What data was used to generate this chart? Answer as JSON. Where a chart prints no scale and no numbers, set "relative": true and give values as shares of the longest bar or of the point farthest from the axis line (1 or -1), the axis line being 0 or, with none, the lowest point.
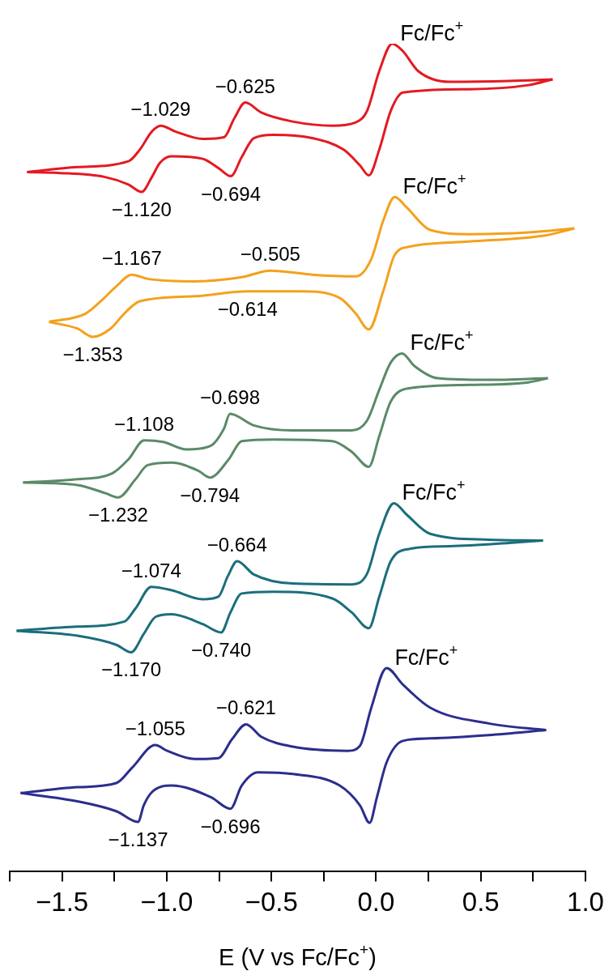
{
  "chart_data": {
    "type": "line",
    "relative": true,
    "xlabel": "E (V vs Fc/Fc$^{+}$)",
    "xlim": [
      -1.75,
      1.0
    ],
    "xticks": [
      {
        "value": -1.75,
        "label": null
      },
      {
        "value": -1.5,
        "label": "−1.5"
      },
      {
        "value": -1.25,
        "label": null
      },
      {
        "value": -1.0,
        "label": "−1.0"
      },
      {
        "value": -0.75,
        "label": null
      },
      {
        "value": -0.5,
        "label": "−0.5"
      },
      {
        "value": -0.25,
        "label": null
      },
      {
        "value": 0.0,
        "label": "0.0"
      },
      {
        "value": 0.25,
        "label": null
      },
      {
        "value": 0.5,
        "label": "0.5"
      },
      {
        "value": 0.75,
        "label": null
      },
      {
        "value": 1.0,
        "label": "1.0"
      }
    ],
    "tick_labels": "x",
    "legend": false,
    "series": [
      {
        "name": "Fc/Fc$^{+}$",
        "color": "#e31a22",
        "x": [
          -1.667,
          -1.427,
          -1.183,
          -1.129,
          -1.071,
          -1.029,
          -0.959,
          -0.828,
          -0.727,
          -0.677,
          -0.625,
          -0.549,
          -0.398,
          -0.209,
          -0.097,
          -0.043,
          0.015,
          0.077,
          0.128,
          0.201,
          0.352,
          0.634,
          0.843
        ],
        "values": [
          0.845,
          0.851,
          0.858,
          0.872,
          0.894,
          0.901,
          0.894,
          0.885,
          0.887,
          0.91,
          0.929,
          0.917,
          0.906,
          0.901,
          0.905,
          0.919,
          0.967,
          1.0,
          0.991,
          0.967,
          0.954,
          0.955,
          0.957
        ]
      },
      {
        "color": "#e31a22",
        "x": [
          -1.667,
          -1.52,
          -1.295,
          -1.183,
          -1.12,
          -1.071,
          -1.033,
          -0.978,
          -0.828,
          -0.754,
          -0.694,
          -0.642,
          -0.584,
          -0.491,
          -0.305,
          -0.155,
          -0.077,
          -0.035,
          0.015,
          0.07,
          0.128,
          0.445,
          0.727,
          0.843
        ],
        "values": [
          0.845,
          0.844,
          0.839,
          0.83,
          0.821,
          0.839,
          0.856,
          0.864,
          0.861,
          0.85,
          0.84,
          0.863,
          0.886,
          0.89,
          0.886,
          0.872,
          0.853,
          0.841,
          0.872,
          0.919,
          0.941,
          0.945,
          0.95,
          0.957
        ]
      },
      {
        "name": "Fc/Fc$^{+}$",
        "color": "#f4a11d",
        "x": [
          -1.562,
          -1.388,
          -1.315,
          -1.241,
          -1.167,
          -1.091,
          -0.866,
          -0.642,
          -0.505,
          -0.305,
          -0.097,
          -0.023,
          0.035,
          0.089,
          0.147,
          0.259,
          0.445,
          0.727,
          0.947
        ],
        "values": [
          0.664,
          0.674,
          0.689,
          0.707,
          0.721,
          0.716,
          0.713,
          0.718,
          0.726,
          0.721,
          0.719,
          0.74,
          0.787,
          0.815,
          0.802,
          0.775,
          0.77,
          0.772,
          0.777
        ]
      },
      {
        "color": "#f4a11d",
        "x": [
          -1.562,
          -1.427,
          -1.353,
          -1.268,
          -1.203,
          -1.129,
          -0.866,
          -0.614,
          -0.36,
          -0.174,
          -0.097,
          -0.035,
          0.035,
          0.089,
          0.162,
          0.445,
          0.82,
          0.947
        ],
        "values": [
          0.664,
          0.656,
          0.646,
          0.656,
          0.674,
          0.689,
          0.695,
          0.701,
          0.701,
          0.693,
          0.674,
          0.655,
          0.702,
          0.745,
          0.755,
          0.761,
          0.769,
          0.777
        ]
      },
      {
        "name": "Fc/Fc$^{+}$",
        "color": "#5b8a68",
        "x": [
          -1.686,
          -1.427,
          -1.261,
          -1.183,
          -1.108,
          -1.017,
          -0.905,
          -0.793,
          -0.727,
          -0.698,
          -0.584,
          -0.398,
          -0.116,
          -0.043,
          0.015,
          0.07,
          0.124,
          0.182,
          0.294,
          0.538,
          0.82
        ],
        "values": [
          0.47,
          0.474,
          0.481,
          0.498,
          0.521,
          0.519,
          0.51,
          0.514,
          0.535,
          0.553,
          0.539,
          0.533,
          0.533,
          0.545,
          0.582,
          0.615,
          0.626,
          0.611,
          0.596,
          0.594,
          0.596
        ]
      },
      {
        "color": "#5b8a68",
        "x": [
          -1.686,
          -1.427,
          -1.292,
          -1.232,
          -1.149,
          -1.091,
          -0.978,
          -0.847,
          -0.794,
          -0.704,
          -0.642,
          -0.491,
          -0.209,
          -0.116,
          -0.035,
          0.015,
          0.07,
          0.162,
          0.445,
          0.727,
          0.82
        ],
        "values": [
          0.47,
          0.467,
          0.457,
          0.452,
          0.474,
          0.491,
          0.494,
          0.484,
          0.476,
          0.498,
          0.52,
          0.522,
          0.52,
          0.507,
          0.489,
          0.526,
          0.568,
          0.584,
          0.588,
          0.591,
          0.596
        ]
      },
      {
        "name": "Fc/Fc$^{+}$",
        "color": "#1b6e7c",
        "x": [
          -1.717,
          -1.427,
          -1.203,
          -1.149,
          -1.074,
          -0.978,
          -0.828,
          -0.754,
          -0.708,
          -0.664,
          -0.584,
          -0.398,
          -0.116,
          -0.043,
          0.015,
          0.085,
          0.147,
          0.259,
          0.538,
          0.797
        ],
        "values": [
          0.291,
          0.296,
          0.302,
          0.318,
          0.344,
          0.34,
          0.329,
          0.332,
          0.357,
          0.375,
          0.359,
          0.348,
          0.347,
          0.36,
          0.408,
          0.445,
          0.431,
          0.408,
          0.401,
          0.4
        ]
      },
      {
        "color": "#1b6e7c",
        "x": [
          -1.717,
          -1.427,
          -1.241,
          -1.17,
          -1.11,
          -1.052,
          -0.978,
          -0.828,
          -0.74,
          -0.696,
          -0.642,
          -0.491,
          -0.209,
          -0.116,
          -0.035,
          0.015,
          0.07,
          0.162,
          0.352,
          0.634,
          0.797
        ],
        "values": [
          0.291,
          0.285,
          0.274,
          0.265,
          0.287,
          0.308,
          0.311,
          0.299,
          0.289,
          0.313,
          0.336,
          0.338,
          0.33,
          0.313,
          0.294,
          0.332,
          0.375,
          0.39,
          0.393,
          0.397,
          0.4
        ]
      },
      {
        "name": "Fc/Fc$^{+}$",
        "color": "#2b2e8c",
        "x": [
          -1.698,
          -1.427,
          -1.241,
          -1.164,
          -1.055,
          -0.998,
          -0.866,
          -0.754,
          -0.688,
          -0.621,
          -0.549,
          -0.398,
          -0.135,
          -0.077,
          -0.023,
          0.05,
          0.128,
          0.259,
          0.538,
          0.812
        ],
        "values": [
          0.095,
          0.102,
          0.107,
          0.126,
          0.153,
          0.146,
          0.136,
          0.137,
          0.16,
          0.178,
          0.163,
          0.151,
          0.146,
          0.152,
          0.198,
          0.246,
          0.226,
          0.198,
          0.179,
          0.171
        ]
      },
      {
        "color": "#2b2e8c",
        "x": [
          -1.698,
          -1.427,
          -1.241,
          -1.137,
          -1.11,
          -1.071,
          -0.978,
          -0.789,
          -0.696,
          -0.642,
          -0.565,
          -0.398,
          -0.174,
          -0.077,
          -0.031,
          0.004,
          0.05,
          0.128,
          0.259,
          0.538,
          0.812
        ],
        "values": [
          0.095,
          0.085,
          0.073,
          0.06,
          0.08,
          0.096,
          0.104,
          0.09,
          0.076,
          0.104,
          0.12,
          0.118,
          0.104,
          0.08,
          0.059,
          0.09,
          0.132,
          0.158,
          0.161,
          0.165,
          0.171
        ]
      }
    ],
    "annotations": [
      {
        "text": "−1.029",
        "x": -1.029,
        "y": 0.901
      },
      {
        "text": "−0.625",
        "x": -0.625,
        "y": 0.929
      },
      {
        "text": "−1.120",
        "x": -1.12,
        "y": 0.821
      },
      {
        "text": "−0.694",
        "x": -0.694,
        "y": 0.84
      },
      {
        "text": "−1.167",
        "x": -1.167,
        "y": 0.721
      },
      {
        "text": "−0.505",
        "x": -0.505,
        "y": 0.726
      },
      {
        "text": "−1.353",
        "x": -1.353,
        "y": 0.646
      },
      {
        "text": "−0.614",
        "x": -0.614,
        "y": 0.701
      },
      {
        "text": "−1.108",
        "x": -1.108,
        "y": 0.521
      },
      {
        "text": "−0.698",
        "x": -0.698,
        "y": 0.553
      },
      {
        "text": "−1.232",
        "x": -1.232,
        "y": 0.452
      },
      {
        "text": "−0.794",
        "x": -0.794,
        "y": 0.476
      },
      {
        "text": "−1.074",
        "x": -1.074,
        "y": 0.344
      },
      {
        "text": "−0.664",
        "x": -0.664,
        "y": 0.375
      },
      {
        "text": "−1.170",
        "x": -1.17,
        "y": 0.265
      },
      {
        "text": "−0.740",
        "x": -0.74,
        "y": 0.289
      },
      {
        "text": "−1.055",
        "x": -1.055,
        "y": 0.153
      },
      {
        "text": "−0.621",
        "x": -0.621,
        "y": 0.178
      },
      {
        "text": "−1.137",
        "x": -1.137,
        "y": 0.06
      },
      {
        "text": "−0.696",
        "x": -0.696,
        "y": 0.076
      }
    ]
  }
}
